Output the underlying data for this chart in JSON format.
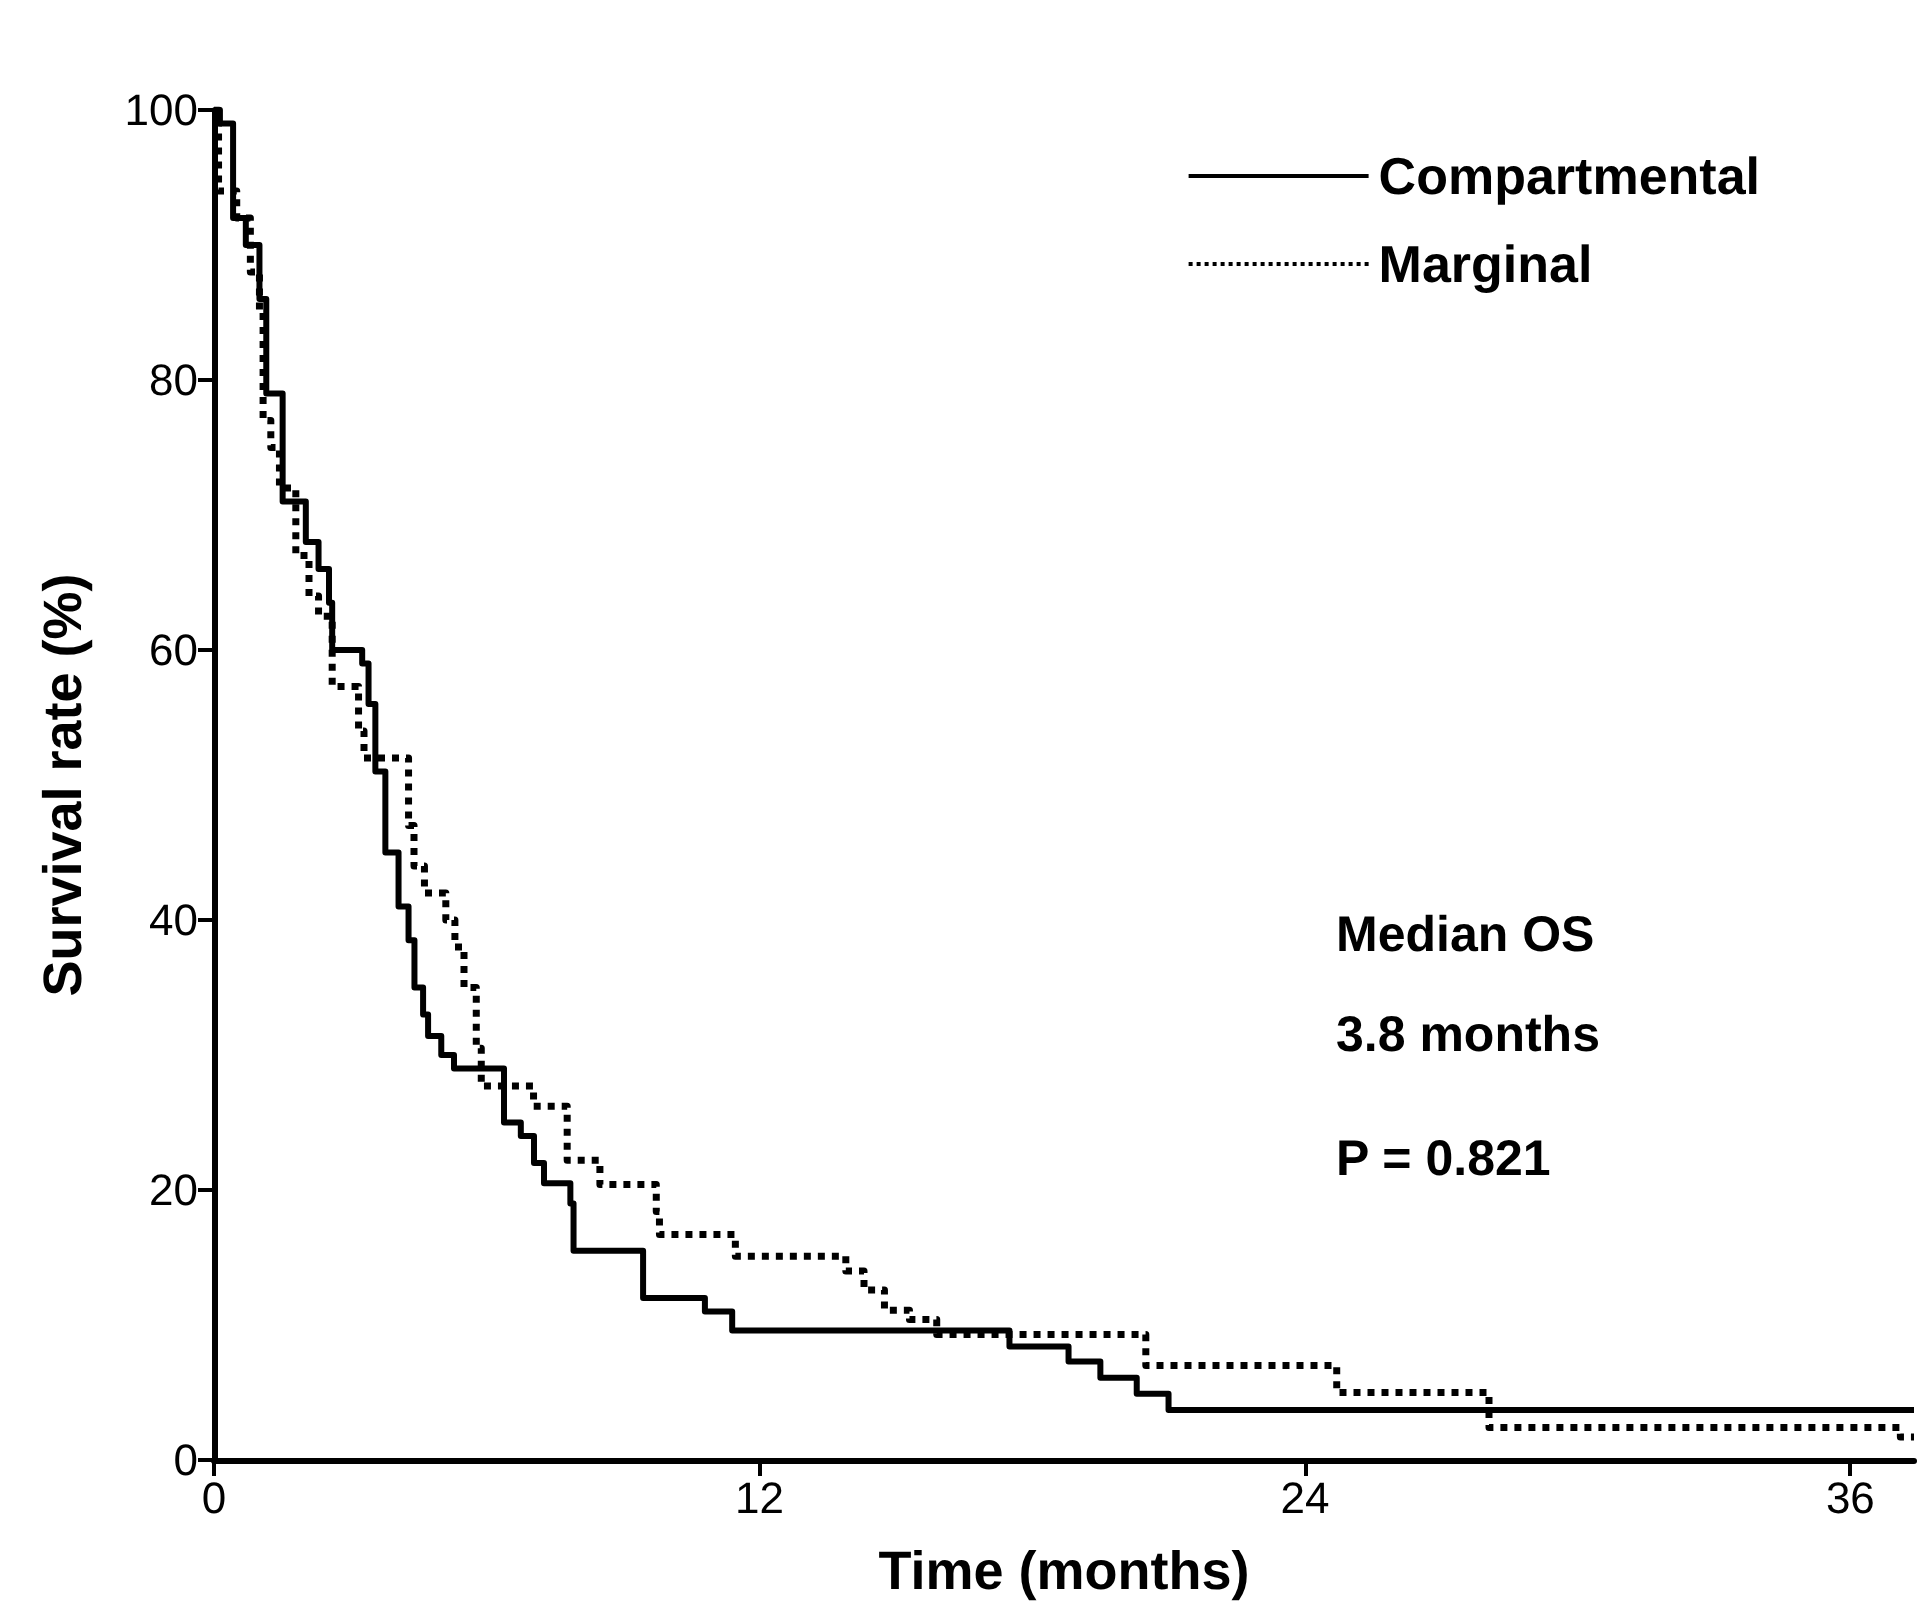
{
  "chart_data": {
    "type": "step",
    "xlabel": "Time (months)",
    "ylabel": "Survival rate (%)",
    "xlim": [
      0,
      37.4
    ],
    "xticks": [
      0,
      12,
      24,
      36
    ],
    "ylim": [
      0,
      100
    ],
    "yticks": [
      0,
      20,
      40,
      60,
      80,
      100
    ],
    "grid": false,
    "legend": "top right",
    "marker": "none",
    "annotations": [
      "Median OS",
      "3.8 months",
      "P = 0.821"
    ],
    "series": [
      {
        "name": "Compartmental",
        "color": "#000000",
        "line_style": "solid",
        "x": [
          0,
          0.13,
          0.42,
          0.7,
          1.0,
          1.15,
          1.51,
          2.02,
          2.3,
          2.53,
          2.6,
          3.26,
          3.4,
          3.55,
          3.77,
          4.06,
          4.28,
          4.41,
          4.6,
          4.71,
          5.0,
          5.28,
          6.38,
          6.75,
          7.04,
          7.26,
          7.84,
          7.91,
          9.44,
          10.8,
          11.4,
          17.5,
          18.8,
          19.5,
          20.3,
          21.0,
          37.4
        ],
        "values": [
          100,
          99,
          92,
          90,
          86,
          79,
          71,
          68,
          66,
          63.5,
          60,
          59,
          56,
          51,
          45,
          41,
          38.5,
          35,
          33,
          31.4,
          30,
          29,
          25,
          24,
          22,
          20.5,
          19,
          15.5,
          12,
          11,
          9.6,
          8.4,
          7.3,
          6.1,
          4.9,
          3.7,
          3.7
        ]
      },
      {
        "name": "Marginal",
        "color": "#000000",
        "line_style": "dotted",
        "x": [
          0,
          0.1,
          0.5,
          0.8,
          1.0,
          1.08,
          1.25,
          1.44,
          1.8,
          2.09,
          2.3,
          2.6,
          3.18,
          3.3,
          4.28,
          4.4,
          4.63,
          5.1,
          5.3,
          5.5,
          5.77,
          5.88,
          7.03,
          7.77,
          8.49,
          9.73,
          9.8,
          11.47,
          13.9,
          14.3,
          14.75,
          15.3,
          15.9,
          20.5,
          24.7,
          28.05,
          37.1,
          37.4
        ],
        "values": [
          100,
          94,
          92,
          88,
          85,
          77,
          75,
          72,
          67,
          64,
          62.5,
          57.3,
          54,
          52,
          47,
          44,
          42,
          40,
          38,
          35,
          30.5,
          27.7,
          26.2,
          22.2,
          20.4,
          18.4,
          16.7,
          15.1,
          14,
          12.6,
          11.1,
          10.4,
          9.3,
          7.0,
          5.0,
          2.4,
          1.7,
          1.7
        ]
      }
    ]
  }
}
